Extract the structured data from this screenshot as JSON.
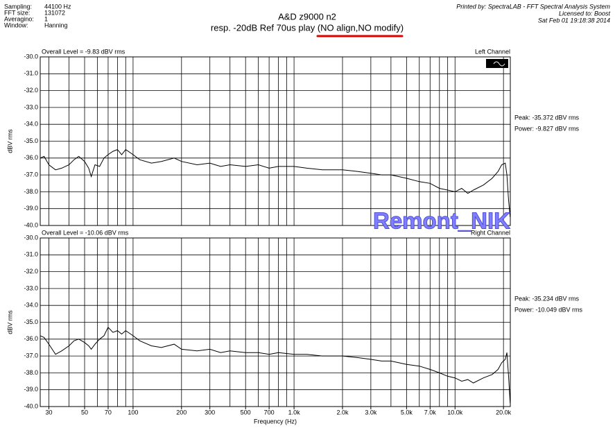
{
  "header": {
    "info": [
      [
        "Sampling:",
        "44100 Hz"
      ],
      [
        "FFT size:",
        "131072"
      ],
      [
        "Averagino:",
        "1"
      ],
      [
        "Window:",
        "Hanning"
      ]
    ],
    "title": "A&D z9000 n2",
    "subtitle": "resp. -20dB  Ref 70us  play (NO align,NO modify)",
    "printed_by": "Printed by: SpectraLAB - FFT Spectral Analysis System",
    "licensed_to": "Licensed to: Boost",
    "date": "Sat Feb 01 19:18:38 2014"
  },
  "watermark": "Remont_NIK",
  "chart_data": [
    {
      "type": "line",
      "overall": "Overall Level = -9.83 dBV rms",
      "channel": "Left Channel",
      "peak": "Peak: -35.372 dBV rms",
      "power": "Power: -9.827 dBV rms",
      "y_label": "dBV rms",
      "log_x": true,
      "grid": true,
      "color": "#000000",
      "xlim": [
        26.5,
        22050
      ],
      "ylim": [
        -40,
        -30
      ],
      "yticks": [
        {
          "value": -30,
          "label": "-30.0"
        },
        {
          "value": -31,
          "label": "-31.0"
        },
        {
          "value": -32,
          "label": "-32.0"
        },
        {
          "value": -33,
          "label": "-33.0"
        },
        {
          "value": -34,
          "label": "-34.0"
        },
        {
          "value": -35,
          "label": "-35.0"
        },
        {
          "value": -36,
          "label": "-36.0"
        },
        {
          "value": -37,
          "label": "-37.0"
        },
        {
          "value": -38,
          "label": "-38.0"
        },
        {
          "value": -39,
          "label": "-39.0"
        },
        {
          "value": -40,
          "label": "-40.0"
        }
      ],
      "xgrid": [
        30,
        40,
        50,
        60,
        70,
        80,
        90,
        100,
        200,
        300,
        400,
        500,
        600,
        700,
        800,
        900,
        1000,
        2000,
        3000,
        4000,
        5000,
        6000,
        7000,
        8000,
        9000,
        10000,
        20000
      ],
      "x": [
        26.5,
        28,
        30,
        33,
        36,
        40,
        43,
        46,
        50,
        53,
        55,
        58,
        62,
        66,
        70,
        75,
        80,
        85,
        90,
        100,
        110,
        130,
        150,
        180,
        200,
        250,
        300,
        350,
        400,
        500,
        600,
        700,
        800,
        1000,
        1200,
        1500,
        2000,
        2500,
        3000,
        3500,
        4000,
        5000,
        6000,
        7000,
        8000,
        9000,
        10000,
        11000,
        12000,
        13000,
        15000,
        17000,
        18500,
        19500,
        20500,
        21000,
        21500,
        22000
      ],
      "values": [
        -36.0,
        -35.9,
        -36.4,
        -36.7,
        -36.6,
        -36.4,
        -36.1,
        -35.9,
        -36.2,
        -36.6,
        -37.1,
        -36.4,
        -36.5,
        -36.0,
        -35.8,
        -35.6,
        -35.5,
        -35.8,
        -35.5,
        -35.8,
        -36.1,
        -36.3,
        -36.2,
        -36.0,
        -36.2,
        -36.4,
        -36.3,
        -36.5,
        -36.4,
        -36.5,
        -36.4,
        -36.6,
        -36.5,
        -36.5,
        -36.6,
        -36.7,
        -36.7,
        -36.8,
        -36.9,
        -37.0,
        -37.0,
        -37.2,
        -37.4,
        -37.5,
        -37.8,
        -37.9,
        -38.0,
        -37.8,
        -38.1,
        -37.9,
        -37.6,
        -37.2,
        -36.8,
        -36.4,
        -36.3,
        -37.0,
        -38.5,
        -39.5
      ]
    },
    {
      "type": "line",
      "overall": "Overall Level = -10.06 dBV rms",
      "channel": "Right Channel",
      "peak": "Peak: -35.234 dBV rms",
      "power": "Power: -10.049 dBV rms",
      "y_label": "dBV rms",
      "x_label": "Frequency (Hz)",
      "log_x": true,
      "grid": true,
      "color": "#000000",
      "xlim": [
        26.5,
        22050
      ],
      "ylim": [
        -40,
        -30
      ],
      "yticks": [
        {
          "value": -30,
          "label": "-30.0"
        },
        {
          "value": -31,
          "label": "-31.0"
        },
        {
          "value": -32,
          "label": "-32.0"
        },
        {
          "value": -33,
          "label": "-33.0"
        },
        {
          "value": -34,
          "label": "-34.0"
        },
        {
          "value": -35,
          "label": "-35.0"
        },
        {
          "value": -36,
          "label": "-36.0"
        },
        {
          "value": -37,
          "label": "-37.0"
        },
        {
          "value": -38,
          "label": "-38.0"
        },
        {
          "value": -39,
          "label": "-39.0"
        },
        {
          "value": -40,
          "label": "-40.0"
        }
      ],
      "xticks": [
        30,
        50,
        70,
        100,
        200,
        300,
        500,
        700,
        {
          "value": 1000,
          "label": "1.0k"
        },
        {
          "value": 2000,
          "label": "2.0k"
        },
        {
          "value": 3000,
          "label": "3.0k"
        },
        {
          "value": 5000,
          "label": "5.0k"
        },
        {
          "value": 7000,
          "label": "7.0k"
        },
        {
          "value": 10000,
          "label": "10.0k"
        },
        {
          "value": 20000,
          "label": "20.0k"
        }
      ],
      "xgrid": [
        30,
        40,
        50,
        60,
        70,
        80,
        90,
        100,
        200,
        300,
        400,
        500,
        600,
        700,
        800,
        900,
        1000,
        2000,
        3000,
        4000,
        5000,
        6000,
        7000,
        8000,
        9000,
        10000,
        20000
      ],
      "x": [
        26.5,
        28,
        30,
        33,
        36,
        40,
        43,
        46,
        50,
        53,
        55,
        58,
        62,
        66,
        70,
        75,
        80,
        85,
        90,
        100,
        110,
        130,
        150,
        180,
        200,
        250,
        300,
        350,
        400,
        500,
        600,
        700,
        800,
        1000,
        1200,
        1500,
        2000,
        2500,
        3000,
        3500,
        4000,
        5000,
        6000,
        7000,
        8000,
        9000,
        10000,
        11000,
        12000,
        13000,
        15000,
        17000,
        18500,
        19500,
        20500,
        21000,
        21500,
        22000
      ],
      "values": [
        -35.8,
        -35.9,
        -36.3,
        -36.9,
        -36.7,
        -36.4,
        -36.1,
        -36.0,
        -36.2,
        -36.4,
        -36.6,
        -36.3,
        -36.0,
        -35.8,
        -35.3,
        -35.6,
        -35.5,
        -35.7,
        -35.5,
        -35.8,
        -36.1,
        -36.4,
        -36.5,
        -36.3,
        -36.6,
        -36.7,
        -36.6,
        -36.8,
        -36.7,
        -36.8,
        -36.8,
        -36.9,
        -36.8,
        -36.9,
        -36.9,
        -37.0,
        -37.0,
        -37.1,
        -37.2,
        -37.3,
        -37.3,
        -37.5,
        -37.6,
        -37.8,
        -38.0,
        -38.2,
        -38.3,
        -38.5,
        -38.4,
        -38.6,
        -38.3,
        -38.1,
        -37.8,
        -37.4,
        -37.2,
        -36.8,
        -38.2,
        -39.8
      ]
    }
  ]
}
